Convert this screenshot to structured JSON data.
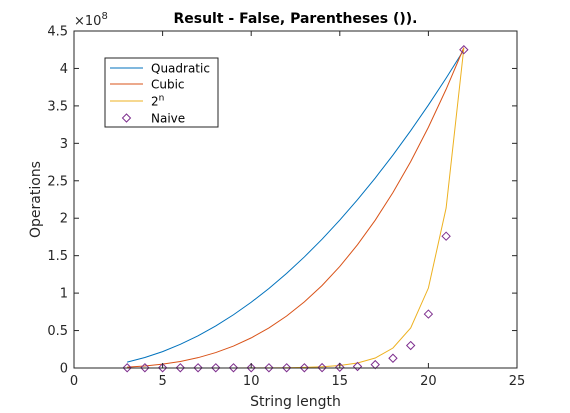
{
  "chart_data": {
    "type": "line",
    "title": "Result - False, Parentheses ()).",
    "xlabel": "String length",
    "ylabel": "Operations",
    "y_exponent_base": "×10",
    "y_exponent_power": "8",
    "y_scale": 100000000,
    "xlim": [
      0,
      25
    ],
    "ylim": [
      0,
      450000000
    ],
    "x_ticks": [
      0,
      5,
      10,
      15,
      20,
      25
    ],
    "y_ticks": [
      0,
      50000000,
      100000000,
      150000000,
      200000000,
      250000000,
      300000000,
      350000000,
      400000000,
      450000000
    ],
    "x_tick_labels": [
      "0",
      "5",
      "10",
      "15",
      "20",
      "25"
    ],
    "y_tick_labels": [
      "0",
      "0.5",
      "1",
      "1.5",
      "2",
      "2.5",
      "3",
      "3.5",
      "4",
      "4.5"
    ],
    "grid": false,
    "legend_position": "top-left",
    "series": [
      {
        "name": "Quadratic",
        "type": "line",
        "color": "#0072BD",
        "x": [
          3,
          4,
          5,
          6,
          7,
          8,
          9,
          10,
          11,
          12,
          13,
          14,
          15,
          16,
          17,
          18,
          19,
          20,
          21,
          22
        ],
        "y": [
          7900000,
          14000000,
          21900000,
          31600000,
          43000000,
          56200000,
          71100000,
          87800000,
          106200000,
          126400000,
          148300000,
          172000000,
          197500000,
          224700000,
          253700000,
          284400000,
          316900000,
          351100000,
          387100000,
          424800000
        ]
      },
      {
        "name": "Cubic",
        "type": "line",
        "color": "#D95319",
        "x": [
          3,
          4,
          5,
          6,
          7,
          8,
          9,
          10,
          11,
          12,
          13,
          14,
          15,
          16,
          17,
          18,
          19,
          20,
          21,
          22
        ],
        "y": [
          1100000,
          2600000,
          5100000,
          8700000,
          13800000,
          20600000,
          29300000,
          40200000,
          53500000,
          69400000,
          88300000,
          110200000,
          135600000,
          164600000,
          197400000,
          234400000,
          275600000,
          321500000,
          372200000,
          427800000
        ]
      },
      {
        "name": "2^n",
        "label_base": "2",
        "label_sup": "n",
        "type": "line",
        "color": "#EDB120",
        "x": [
          3,
          4,
          5,
          6,
          7,
          8,
          9,
          10,
          11,
          12,
          13,
          14,
          15,
          16,
          17,
          18,
          19,
          20,
          21,
          22
        ],
        "y": [
          800,
          1600,
          3300,
          6500,
          13000,
          26000,
          52000,
          104000,
          208000,
          417000,
          834000,
          1700000,
          3300000,
          6700000,
          13300000,
          26700000,
          53400000,
          106800000,
          213600000,
          427200000
        ]
      },
      {
        "name": "Naive",
        "type": "scatter",
        "marker": "diamond",
        "color": "#7E2F8E",
        "x": [
          3,
          4,
          5,
          6,
          7,
          8,
          9,
          10,
          11,
          12,
          13,
          14,
          15,
          16,
          17,
          18,
          19,
          20,
          21,
          22
        ],
        "y": [
          300000,
          300000,
          300000,
          300000,
          300000,
          300000,
          300000,
          300000,
          300000,
          300000,
          300000,
          500000,
          1000000,
          2000000,
          4500000,
          13000000,
          30000000,
          72000000,
          176000000,
          425000000
        ]
      }
    ]
  },
  "colors": {
    "axis": "#262626",
    "background": "#ffffff"
  }
}
